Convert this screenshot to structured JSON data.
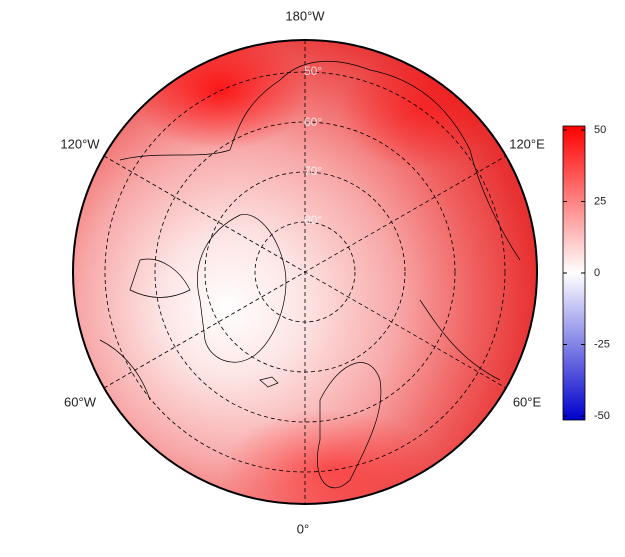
{
  "map": {
    "longitude_labels": [
      "180°W",
      "120°W",
      "120°E",
      "60°W",
      "60°E",
      "0°"
    ],
    "latitude_labels": [
      "50°",
      "60°",
      "70°",
      "80°"
    ]
  },
  "colorbar": {
    "lim": [
      -50,
      50
    ],
    "ticks": [
      50,
      25,
      0,
      -25,
      -50
    ],
    "colors": [
      "#0000cc",
      "#ffffff",
      "#ff0000"
    ]
  }
}
